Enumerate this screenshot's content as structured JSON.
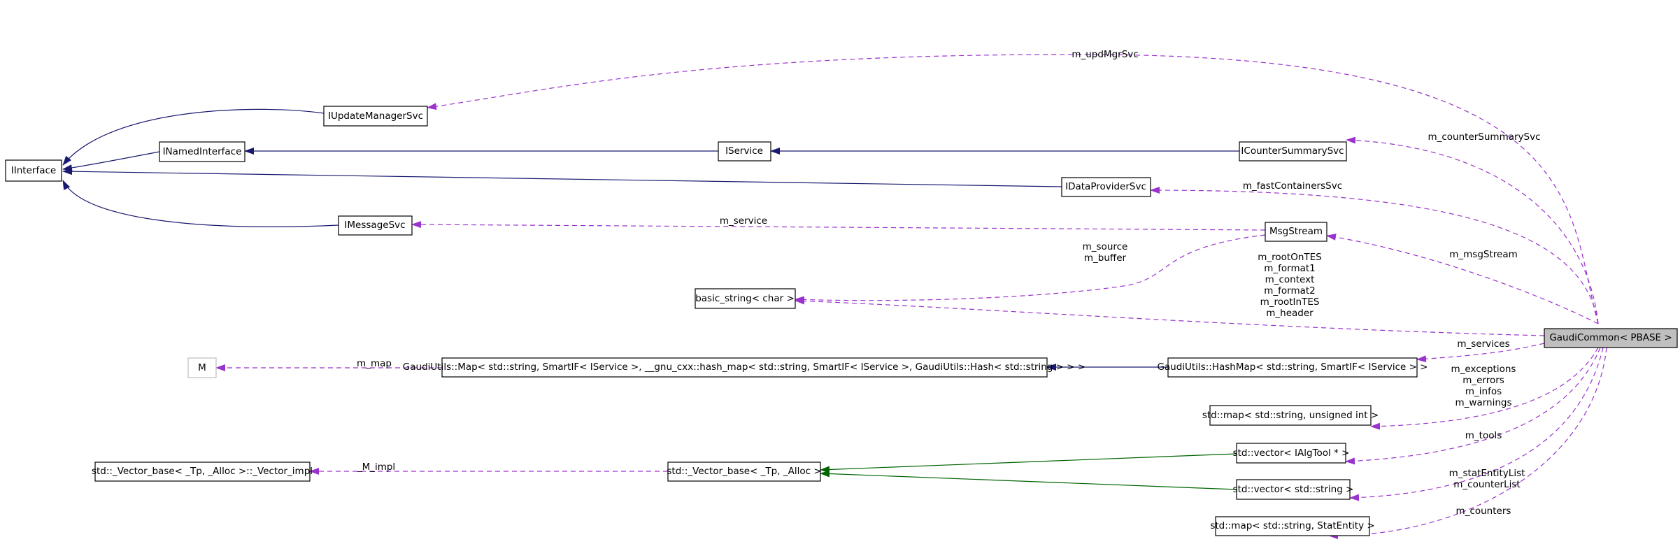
{
  "nodes": {
    "iinterface": "IInterface",
    "iupdatemanagersvc": "IUpdateManagerSvc",
    "inamedinterface": "INamedInterface",
    "iservice": "IService",
    "icountersummarysvc": "ICounterSummarySvc",
    "idataprovidersvc": "IDataProviderSvc",
    "imessagesvc": "IMessageSvc",
    "msgstream": "MsgStream",
    "basic_string": "basic_string< char >",
    "gaudicommon": "GaudiCommon< PBASE >",
    "m_template": "M",
    "gaudiutils_map": "GaudiUtils::Map< std::string, SmartIF< IService >, __gnu_cxx::hash_map< std::string, SmartIF< IService >, GaudiUtils::Hash< std::string > > >",
    "gaudiutils_hashmap": "GaudiUtils::HashMap< std::string, SmartIF< IService > >",
    "map_string_uint": "std::map< std::string, unsigned int >",
    "vector_ialgtool": "std::vector< IAlgTool * >",
    "vector_impl": "std::_Vector_base< _Tp, _Alloc >::_Vector_impl",
    "vector_base": "std::_Vector_base< _Tp, _Alloc >",
    "vector_string": "std::vector< std::string >",
    "map_statentity": "std::map< std::string, StatEntity >"
  },
  "edge_labels": {
    "m_updMgrSvc": "m_updMgrSvc",
    "m_counterSummarySvc": "m_counterSummarySvc",
    "m_fastContainersSvc": "m_fastContainersSvc",
    "m_service": "m_service",
    "m_msgStream": "m_msgStream",
    "m_source": "m_source",
    "m_buffer": "m_buffer",
    "m_rootOnTES": "m_rootOnTES",
    "m_format1": "m_format1",
    "m_context": "m_context",
    "m_format2": "m_format2",
    "m_rootInTES": "m_rootInTES",
    "m_header": "m_header",
    "m_services": "m_services",
    "m_map": "m_map",
    "m_exceptions": "m_exceptions",
    "m_errors": "m_errors",
    "m_infos": "m_infos",
    "m_warnings": "m_warnings",
    "m_tools": "m_tools",
    "m_impl": "_M_impl",
    "m_statEntityList": "m_statEntityList",
    "m_counterList": "m_counterList",
    "m_counters": "m_counters"
  },
  "colors": {
    "inheritance": "#191970",
    "template_inheritance": "#006400",
    "usage": "#9a32cd",
    "focus_fill": "#bfbfbf"
  }
}
